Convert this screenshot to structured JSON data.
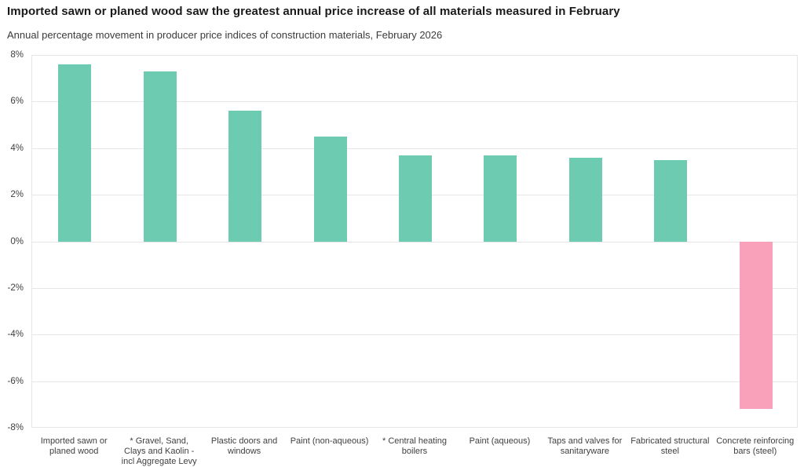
{
  "header": {
    "title": "Imported sawn or planed wood saw the greatest annual price increase of all materials measured in February",
    "subtitle": "Annual percentage movement in producer price indices of construction materials, February 2026"
  },
  "colors": {
    "positive_bar": "#6DCBB2",
    "negative_bar": "#F9A0BA",
    "gridline": "#E6E6E6",
    "axis_text": "#404040",
    "title_text": "#1A1A1A"
  },
  "chart_data": {
    "type": "bar",
    "title": "Imported sawn or planed wood saw the greatest annual price increase of all materials measured in February",
    "subtitle": "Annual percentage movement in producer price indices of construction materials, February 2026",
    "categories": [
      "Imported sawn or planed wood",
      "* Gravel, Sand, Clays and Kaolin - incl Aggregate Levy",
      "Plastic doors and windows",
      "Paint (non-aqueous)",
      "* Central heating boilers",
      "Paint (aqueous)",
      "Taps and valves for sanitaryware",
      "Fabricated structural steel",
      "Concrete reinforcing bars (steel)"
    ],
    "values": [
      7.6,
      7.3,
      5.6,
      4.5,
      3.7,
      3.7,
      3.6,
      3.5,
      -7.2
    ],
    "unit": "%",
    "xlabel": "",
    "ylabel": "",
    "ylim": [
      -8,
      8
    ],
    "ytick_step": 2,
    "yticks": [
      "8%",
      "6%",
      "4%",
      "2%",
      "0%",
      "-2%",
      "-4%",
      "-6%",
      "-8%"
    ],
    "grid": "horizontal",
    "legend": "none"
  }
}
